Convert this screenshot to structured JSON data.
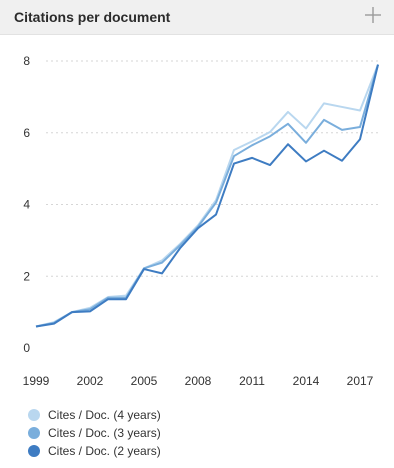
{
  "widget": {
    "title": "Citations per document",
    "expand_icon": "plus-icon"
  },
  "chart_data": {
    "type": "line",
    "x": [
      1999,
      2000,
      2001,
      2002,
      2003,
      2004,
      2005,
      2006,
      2007,
      2008,
      2009,
      2010,
      2011,
      2012,
      2013,
      2014,
      2015,
      2016,
      2017
    ],
    "xticks": [
      "1999",
      "2002",
      "2005",
      "2008",
      "2011",
      "2014",
      "2017"
    ],
    "yticks": [
      "0",
      "2",
      "4",
      "6",
      "8"
    ],
    "ylim": [
      0,
      8
    ],
    "xlim": [
      1999,
      2018
    ],
    "grid": true,
    "legend_position": "bottom",
    "series": [
      {
        "name": "Cites / Doc. (4 years)",
        "color": "#b9d7ef",
        "values": [
          0.6,
          0.72,
          1.0,
          1.12,
          1.42,
          1.46,
          2.22,
          2.44,
          2.9,
          3.42,
          4.12,
          5.52,
          5.76,
          6.02,
          6.58,
          6.12,
          6.82,
          6.72,
          6.62
        ]
      },
      {
        "name": "Cites / Doc. (3 years)",
        "color": "#7aaedc",
        "values": [
          0.6,
          0.7,
          1.0,
          1.08,
          1.4,
          1.4,
          2.22,
          2.38,
          2.86,
          3.38,
          4.05,
          5.35,
          5.65,
          5.9,
          6.25,
          5.72,
          6.36,
          6.08,
          6.16
        ]
      },
      {
        "name": "Cites / Doc. (2 years)",
        "color": "#3e7cc2",
        "values": [
          0.6,
          0.68,
          1.0,
          1.02,
          1.36,
          1.36,
          2.2,
          2.08,
          2.78,
          3.34,
          3.72,
          5.14,
          5.3,
          5.1,
          5.68,
          5.2,
          5.5,
          5.22,
          5.82
        ]
      }
    ],
    "end_value": 7.9
  }
}
